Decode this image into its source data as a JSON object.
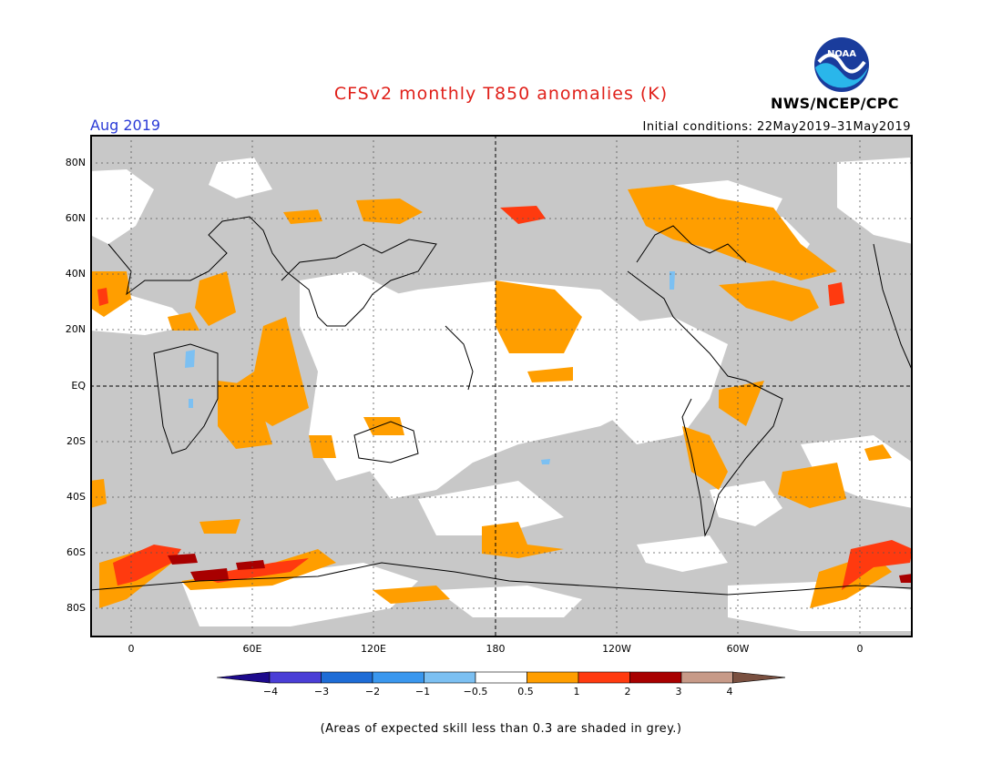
{
  "header": {
    "title": "CFSv2 monthly T850 anomalies (K)",
    "month": "Aug 2019",
    "initial_conditions": "Initial conditions: 22May2019–31May2019",
    "agency": "NWS/NCEP/CPC",
    "logo_text": "NOAA"
  },
  "map": {
    "lat_labels": [
      "80N",
      "60N",
      "40N",
      "20N",
      "EQ",
      "20S",
      "40S",
      "60S",
      "80S"
    ],
    "lon_labels": [
      "0",
      "60E",
      "120E",
      "180",
      "120W",
      "60W",
      "0"
    ]
  },
  "colorbar": {
    "labels": [
      "−4",
      "−3",
      "−2",
      "−1",
      "−0.5",
      "0.5",
      "1",
      "2",
      "3",
      "4"
    ],
    "colors": [
      "#1d0a8c",
      "#4a3ed6",
      "#1e6cd6",
      "#3a97ee",
      "#7cc0f2",
      "#ffffff",
      "#ff9e00",
      "#ff3a0f",
      "#a80000",
      "#c79a88",
      "#7a5040"
    ]
  },
  "footnote": "(Areas of expected skill less than 0.3 are shaded in grey.)",
  "colors": {
    "skill_grey": "#c8c8c8",
    "orange": "#ff9e00",
    "red": "#ff3a0f",
    "darkred": "#a80000",
    "blue": "#7cc0f2"
  }
}
